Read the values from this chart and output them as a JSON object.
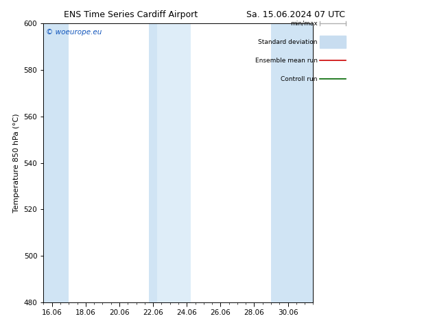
{
  "title_left": "ENS Time Series Cardiff Airport",
  "title_right": "Sa. 15.06.2024 07 UTC",
  "ylabel": "Temperature 850 hPa (°C)",
  "ylim": [
    480,
    600
  ],
  "yticks": [
    480,
    500,
    520,
    540,
    560,
    580,
    600
  ],
  "xlim_start": 15.5,
  "xlim_end": 31.5,
  "xtick_labels": [
    "16.06",
    "18.06",
    "20.06",
    "22.06",
    "24.06",
    "26.06",
    "28.06",
    "30.06"
  ],
  "xtick_positions": [
    16.0,
    18.0,
    20.0,
    22.0,
    24.0,
    26.0,
    28.0,
    30.0
  ],
  "watermark": "© woeurope.eu",
  "watermark_color": "#1155bb",
  "bg_color": "#ffffff",
  "plot_bg_color": "#ffffff",
  "shaded_bands": [
    {
      "x_start": 15.5,
      "x_end": 17.0,
      "color": "#d0e4f4"
    },
    {
      "x_start": 21.75,
      "x_end": 22.25,
      "color": "#d0e4f4"
    },
    {
      "x_start": 22.25,
      "x_end": 24.25,
      "color": "#deedf8"
    },
    {
      "x_start": 29.0,
      "x_end": 31.5,
      "color": "#d0e4f4"
    }
  ],
  "legend_items": [
    {
      "label": "min/max",
      "color": "#b0b0b0",
      "type": "errorbar"
    },
    {
      "label": "Standard deviation",
      "color": "#c8ddf0",
      "type": "band"
    },
    {
      "label": "Ensemble mean run",
      "color": "#cc0000",
      "type": "line"
    },
    {
      "label": "Controll run",
      "color": "#006600",
      "type": "line"
    }
  ],
  "minor_tick_interval": 0.5,
  "spine_color": "#000000",
  "title_fontsize": 9,
  "axis_fontsize": 8,
  "tick_fontsize": 7.5
}
